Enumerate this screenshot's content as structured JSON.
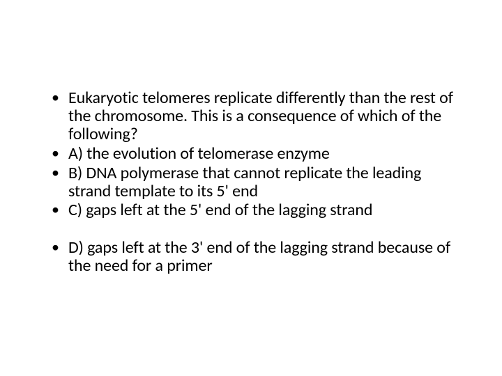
{
  "slide": {
    "type": "document",
    "background_color": "#ffffff",
    "text_color": "#000000",
    "font_family": "Calibri, Arial, sans-serif",
    "font_size_pt": 24,
    "bullet_char": "•",
    "items": [
      {
        "text": "Eukaryotic telomeres replicate differently than the rest of the chromosome. This is a consequence of which of the following?"
      },
      {
        "text": "A)   the evolution of telomerase enzyme"
      },
      {
        "text": "B)   DNA polymerase that cannot replicate the leading strand template to its 5' end"
      },
      {
        "text": "C)   gaps left at the 5' end of the lagging strand"
      },
      {
        "text": "D)   gaps left at the 3' end of the lagging strand because of the need for a primer"
      }
    ]
  }
}
